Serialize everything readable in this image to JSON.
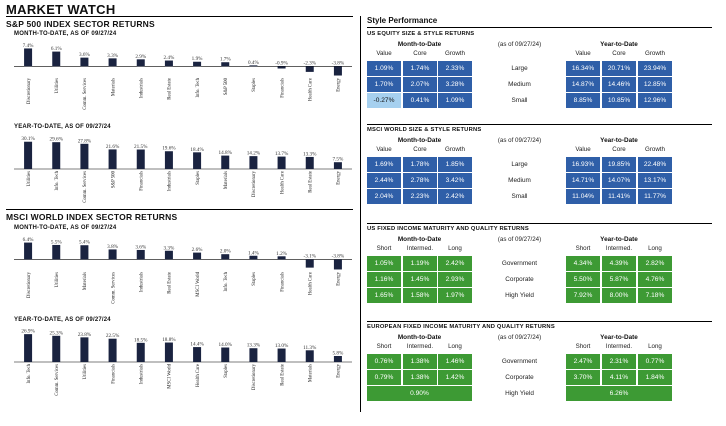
{
  "page_title": "MARKET WATCH",
  "left": {
    "sp500_title": "S&P 500 INDEX SECTOR RETURNS",
    "msci_title": "MSCI WORLD INDEX SECTOR RETURNS"
  },
  "colors": {
    "bar": "#1a2340",
    "blue_cell": "#2f5fa8",
    "light_blue_cell": "#a6d0ef",
    "green_cell": "#3d9a34"
  },
  "chart_data": [
    {
      "type": "bar",
      "title": "MONTH-TO-DATE, AS OF 09/27/24",
      "categories": [
        "Discretionary",
        "Utilities",
        "Comm. Services",
        "Materials",
        "Industrials",
        "Real Estate",
        "Info. Tech",
        "S&P 500",
        "Staples",
        "Financials",
        "Health Care",
        "Energy"
      ],
      "values": [
        7.4,
        6.1,
        3.6,
        3.3,
        2.9,
        2.4,
        1.9,
        1.7,
        0.4,
        -0.9,
        -2.3,
        -3.8
      ],
      "labels": [
        "7.4%",
        "6.1%",
        "3.6%",
        "3.3%",
        "2.9%",
        "2.4%",
        "1.9%",
        "1.7%",
        "0.4%",
        "-0.9%",
        "-2.3%",
        "-3.8%"
      ],
      "ylim": [
        -4,
        8
      ]
    },
    {
      "type": "bar",
      "title": "YEAR-TO-DATE, AS OF 09/27/24",
      "categories": [
        "Utilities",
        "Info. Tech",
        "Comm. Services",
        "S&P 500",
        "Financials",
        "Industrials",
        "Staples",
        "Materials",
        "Discretionary",
        "Health Care",
        "Real Estate",
        "Energy"
      ],
      "values": [
        30.1,
        29.6,
        27.8,
        21.6,
        21.5,
        19.6,
        18.4,
        14.8,
        14.2,
        13.7,
        13.3,
        7.5
      ],
      "labels": [
        "30.1%",
        "29.6%",
        "27.8%",
        "21.6%",
        "21.5%",
        "19.6%",
        "18.4%",
        "14.8%",
        "14.2%",
        "13.7%",
        "13.3%",
        "7.5%"
      ],
      "ylim": [
        0,
        32
      ]
    },
    {
      "type": "bar",
      "title": "MONTH-TO-DATE, AS OF 09/27/24",
      "categories": [
        "Discretionary",
        "Utilities",
        "Materials",
        "Comm. Services",
        "Industrials",
        "Real Estate",
        "MSCI World",
        "Info. Tech",
        "Staples",
        "Financials",
        "Health Care",
        "Energy"
      ],
      "values": [
        6.4,
        5.5,
        5.4,
        3.8,
        3.6,
        3.3,
        2.6,
        2.0,
        1.4,
        1.2,
        -3.1,
        -3.8
      ],
      "labels": [
        "6.4%",
        "5.5%",
        "5.4%",
        "3.8%",
        "3.6%",
        "3.3%",
        "2.6%",
        "2.0%",
        "1.4%",
        "1.2%",
        "-3.1%",
        "-3.8%"
      ],
      "ylim": [
        -4,
        7
      ]
    },
    {
      "type": "bar",
      "title": "YEAR-TO-DATE, AS OF 09/27/24",
      "categories": [
        "Info. Tech",
        "Comm. Services",
        "Utilities",
        "Financials",
        "Industrials",
        "MSCI World",
        "Health Care",
        "Staples",
        "Discretionary",
        "Real Estate",
        "Materials",
        "Energy"
      ],
      "values": [
        26.9,
        25.3,
        23.8,
        22.5,
        18.5,
        18.8,
        14.4,
        14.0,
        13.3,
        13.0,
        11.3,
        5.8
      ],
      "labels": [
        "26.9%",
        "25.3%",
        "23.8%",
        "22.5%",
        "18.5%",
        "18.8%",
        "14.4%",
        "14.0%",
        "13.3%",
        "13.0%",
        "11.3%",
        "5.8%"
      ],
      "ylim": [
        0,
        28
      ]
    }
  ],
  "style_performance": {
    "title": "Style Performance",
    "tables": [
      {
        "title": "US EQUITY SIZE & STYLE RETURNS",
        "color": "blue",
        "mtd_label": "Month-to-Date",
        "asof": "(as of 09/27/24)",
        "ytd_label": "Year-to-Date",
        "left_cols": [
          "Value",
          "Core",
          "Growth"
        ],
        "right_cols": [
          "Value",
          "Core",
          "Growth"
        ],
        "rows": [
          {
            "label": "Large",
            "mtd": [
              "1.09%",
              "1.74%",
              "2.33%"
            ],
            "ytd": [
              "16.34%",
              "20.71%",
              "23.94%"
            ]
          },
          {
            "label": "Medium",
            "mtd": [
              "1.70%",
              "2.07%",
              "3.28%"
            ],
            "ytd": [
              "14.87%",
              "14.46%",
              "12.85%"
            ]
          },
          {
            "label": "Small",
            "mtd": [
              "-0.27%",
              "0.41%",
              "1.09%"
            ],
            "ytd": [
              "8.85%",
              "10.85%",
              "12.96%"
            ]
          }
        ]
      },
      {
        "title": "MSCI WORLD SIZE & STYLE RETURNS",
        "color": "blue",
        "mtd_label": "Month-to-Date",
        "asof": "(as of 09/27/24)",
        "ytd_label": "Year-to-Date",
        "left_cols": [
          "Value",
          "Core",
          "Growth"
        ],
        "right_cols": [
          "Value",
          "Core",
          "Growth"
        ],
        "rows": [
          {
            "label": "Large",
            "mtd": [
              "1.69%",
              "1.78%",
              "1.85%"
            ],
            "ytd": [
              "16.93%",
              "19.85%",
              "22.48%"
            ]
          },
          {
            "label": "Medium",
            "mtd": [
              "2.44%",
              "2.78%",
              "3.42%"
            ],
            "ytd": [
              "14.71%",
              "14.07%",
              "13.17%"
            ]
          },
          {
            "label": "Small",
            "mtd": [
              "2.04%",
              "2.23%",
              "2.42%"
            ],
            "ytd": [
              "11.04%",
              "11.41%",
              "11.77%"
            ]
          }
        ]
      },
      {
        "title": "US FIXED INCOME MATURITY AND QUALITY RETURNS",
        "color": "green",
        "mtd_label": "Month-to-Date",
        "asof": "(as of 09/27/24)",
        "ytd_label": "Year-to-Date",
        "left_cols": [
          "Short",
          "Intermed.",
          "Long"
        ],
        "right_cols": [
          "Short",
          "Intermed.",
          "Long"
        ],
        "rows": [
          {
            "label": "Government",
            "mtd": [
              "1.05%",
              "1.19%",
              "2.42%"
            ],
            "ytd": [
              "4.34%",
              "4.39%",
              "2.82%"
            ]
          },
          {
            "label": "Corporate",
            "mtd": [
              "1.16%",
              "1.45%",
              "2.93%"
            ],
            "ytd": [
              "5.50%",
              "5.87%",
              "4.76%"
            ]
          },
          {
            "label": "High Yield",
            "mtd": [
              "1.65%",
              "1.58%",
              "1.97%"
            ],
            "ytd": [
              "7.92%",
              "8.00%",
              "7.18%"
            ]
          }
        ]
      },
      {
        "title": "EUROPEAN FIXED INCOME MATURITY AND QUALITY RETURNS",
        "color": "green",
        "mtd_label": "Month-to-Date",
        "asof": "(as of 09/27/24)",
        "ytd_label": "Year-to-Date",
        "left_cols": [
          "Short",
          "Intermed.",
          "Long"
        ],
        "right_cols": [
          "Short",
          "Intermed.",
          "Long"
        ],
        "rows": [
          {
            "label": "Government",
            "mtd": [
              "0.76%",
              "1.38%",
              "1.46%"
            ],
            "ytd": [
              "2.47%",
              "2.31%",
              "0.77%"
            ]
          },
          {
            "label": "Corporate",
            "mtd": [
              "0.79%",
              "1.38%",
              "1.42%"
            ],
            "ytd": [
              "3.70%",
              "4.11%",
              "1.84%"
            ]
          },
          {
            "label": "High Yield",
            "mtd_merged": "0.90%",
            "ytd_merged": "6.26%"
          }
        ]
      }
    ]
  }
}
